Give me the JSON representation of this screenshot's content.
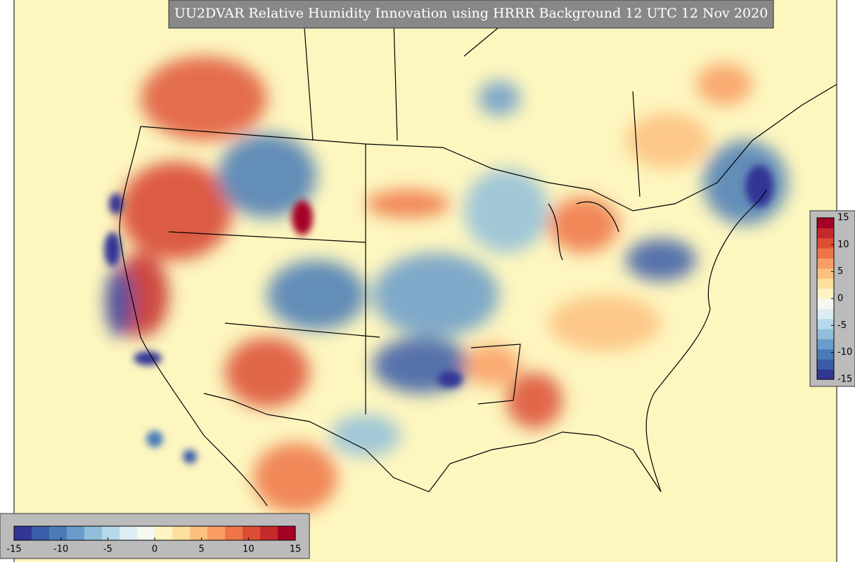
{
  "title": "UU2DVAR Relative Humidity Innovation using HRRR Background 12 UTC 12 Nov 2020",
  "colorbars": [
    {
      "orientation": "horizontal",
      "range": [
        -15,
        15
      ],
      "ticks": [
        -15,
        -10,
        -5,
        0,
        5,
        10,
        15
      ]
    },
    {
      "orientation": "vertical",
      "range": [
        -15,
        15
      ],
      "ticks": [
        -15,
        -10,
        -5,
        0,
        5,
        10,
        15
      ]
    }
  ],
  "colors": [
    "#313695",
    "#3b5ca8",
    "#4a7bb7",
    "#6a9ccb",
    "#91bfdb",
    "#b7d8ea",
    "#dcedf3",
    "#f5f8f1",
    "#fef4c2",
    "#fde0a0",
    "#fdc07f",
    "#f99d63",
    "#ef7447",
    "#dc4d34",
    "#c42a29",
    "#a50026"
  ]
}
